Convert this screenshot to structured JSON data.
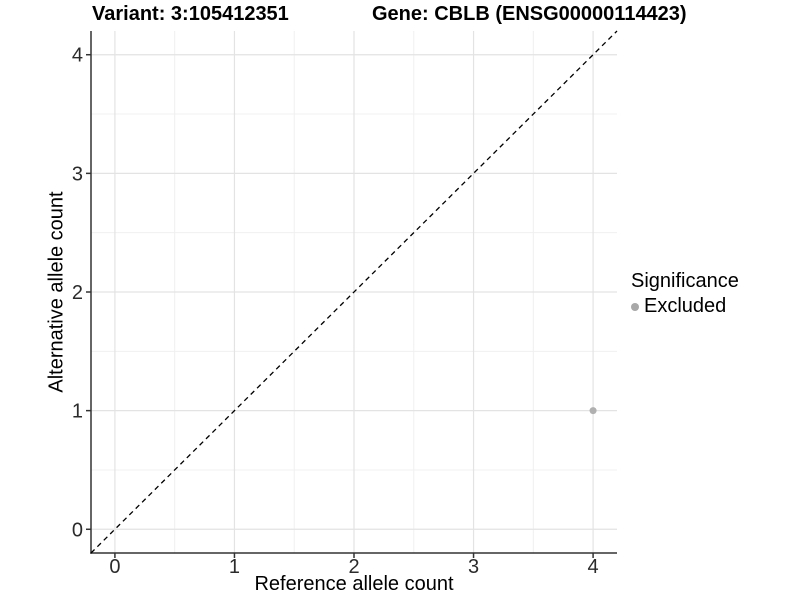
{
  "header": {
    "variant_title": "Variant: 3:105412351",
    "gene_title": "Gene: CBLB (ENSG00000114423)"
  },
  "chart_data": {
    "type": "scatter",
    "xlabel": "Reference allele count",
    "ylabel": "Alternative allele count",
    "xlim": [
      -0.2,
      4.2
    ],
    "ylim": [
      -0.2,
      4.2
    ],
    "xticks": [
      0,
      1,
      2,
      3,
      4
    ],
    "yticks": [
      0,
      1,
      2,
      3,
      4
    ],
    "xticks_minor": [
      0.5,
      1.5,
      2.5,
      3.5
    ],
    "yticks_minor": [
      0.5,
      1.5,
      2.5,
      3.5
    ],
    "grid": true,
    "reference_line": {
      "style": "dashed",
      "from": [
        -0.2,
        -0.2
      ],
      "to": [
        4.2,
        4.2
      ],
      "color": "#000000",
      "meaning": "identity line y = x"
    },
    "series": [
      {
        "name": "Excluded",
        "color": "#b0b0b0",
        "points": [
          {
            "x": 4,
            "y": 1
          }
        ]
      }
    ],
    "legend": {
      "title": "Significance",
      "position": "right",
      "entries": [
        {
          "label": "Excluded",
          "color": "#a8a8a8"
        }
      ]
    }
  },
  "colors": {
    "background": "#ffffff",
    "grid_major": "#e3e3e3",
    "grid_minor": "#f0f0f0",
    "axis_line": "#333333",
    "tick_label": "#2b2b2b",
    "reference_line": "#000000",
    "point": "#b0b0b0"
  }
}
